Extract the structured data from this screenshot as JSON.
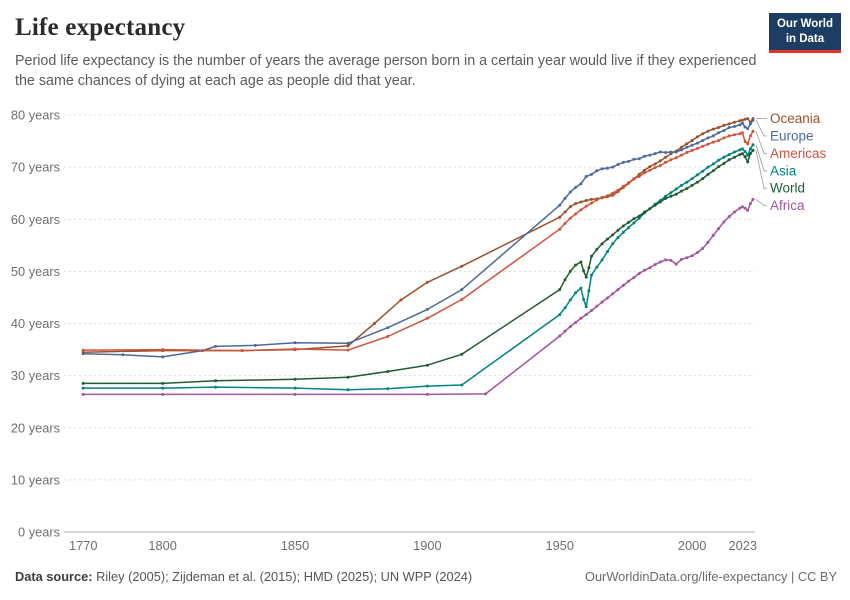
{
  "header": {
    "subtitle": "Period life expectancy is the number of years the average person born in a certain year would live if they experienced the same chances of dying at each age as people did that year.",
    "logo": {
      "line1": "Our World",
      "line2": "in Data",
      "bg": "#1d3d63",
      "accent": "#e5332c"
    }
  },
  "chart_data": {
    "type": "line",
    "title": "Life expectancy",
    "xlabel": "",
    "ylabel": "",
    "x_range": [
      1765,
      2023
    ],
    "y_range": [
      0,
      80
    ],
    "x_ticks": [
      1770,
      1800,
      1850,
      1900,
      1950,
      2000,
      2023
    ],
    "y_ticks": [
      0,
      10,
      20,
      30,
      40,
      50,
      60,
      70,
      80
    ],
    "y_tick_suffix": " years",
    "grid": "horizontal-dashed",
    "legend_position": "right",
    "series": [
      {
        "name": "Oceania",
        "color": "#9a5129",
        "points": [
          [
            1770,
            34.5
          ],
          [
            1800,
            34.8
          ],
          [
            1830,
            34.8
          ],
          [
            1850,
            35.0
          ],
          [
            1870,
            35.7
          ],
          [
            1880,
            40.0
          ],
          [
            1890,
            44.5
          ],
          [
            1900,
            47.9
          ],
          [
            1913,
            51.0
          ],
          [
            1950,
            60.4
          ],
          [
            1952,
            61.4
          ],
          [
            1954,
            62.4
          ],
          [
            1956,
            63.0
          ],
          [
            1958,
            63.3
          ],
          [
            1960,
            63.6
          ],
          [
            1962,
            63.8
          ],
          [
            1964,
            63.9
          ],
          [
            1966,
            64.1
          ],
          [
            1968,
            64.3
          ],
          [
            1970,
            64.6
          ],
          [
            1972,
            65.3
          ],
          [
            1974,
            66.1
          ],
          [
            1976,
            66.9
          ],
          [
            1978,
            67.7
          ],
          [
            1980,
            68.6
          ],
          [
            1982,
            69.4
          ],
          [
            1984,
            70.1
          ],
          [
            1986,
            70.6
          ],
          [
            1988,
            71.2
          ],
          [
            1990,
            71.9
          ],
          [
            1992,
            72.6
          ],
          [
            1994,
            73.1
          ],
          [
            1996,
            73.8
          ],
          [
            1998,
            74.5
          ],
          [
            2000,
            75.1
          ],
          [
            2002,
            75.8
          ],
          [
            2004,
            76.4
          ],
          [
            2006,
            76.9
          ],
          [
            2008,
            77.3
          ],
          [
            2010,
            77.6
          ],
          [
            2012,
            78.0
          ],
          [
            2014,
            78.3
          ],
          [
            2016,
            78.6
          ],
          [
            2018,
            78.9
          ],
          [
            2019,
            79.0
          ],
          [
            2020,
            79.2
          ],
          [
            2021,
            79.3
          ],
          [
            2022,
            78.6
          ],
          [
            2023,
            79.3
          ]
        ]
      },
      {
        "name": "Europe",
        "color": "#4c6a9c",
        "points": [
          [
            1770,
            34.2
          ],
          [
            1785,
            34.0
          ],
          [
            1800,
            33.6
          ],
          [
            1815,
            34.8
          ],
          [
            1820,
            35.6
          ],
          [
            1835,
            35.8
          ],
          [
            1850,
            36.3
          ],
          [
            1870,
            36.2
          ],
          [
            1885,
            39.2
          ],
          [
            1900,
            42.7
          ],
          [
            1913,
            46.5
          ],
          [
            1950,
            62.7
          ],
          [
            1952,
            64.0
          ],
          [
            1954,
            65.2
          ],
          [
            1956,
            66.1
          ],
          [
            1958,
            66.8
          ],
          [
            1960,
            68.2
          ],
          [
            1962,
            68.6
          ],
          [
            1964,
            69.3
          ],
          [
            1966,
            69.7
          ],
          [
            1968,
            69.8
          ],
          [
            1970,
            70.0
          ],
          [
            1972,
            70.5
          ],
          [
            1974,
            70.9
          ],
          [
            1976,
            71.1
          ],
          [
            1978,
            71.5
          ],
          [
            1980,
            71.6
          ],
          [
            1982,
            72.1
          ],
          [
            1984,
            72.3
          ],
          [
            1986,
            72.6
          ],
          [
            1988,
            72.9
          ],
          [
            1990,
            72.8
          ],
          [
            1992,
            72.9
          ],
          [
            1994,
            72.9
          ],
          [
            1996,
            73.3
          ],
          [
            1998,
            73.8
          ],
          [
            2000,
            74.2
          ],
          [
            2002,
            74.6
          ],
          [
            2004,
            75.1
          ],
          [
            2006,
            75.6
          ],
          [
            2008,
            76.0
          ],
          [
            2010,
            76.6
          ],
          [
            2012,
            77.0
          ],
          [
            2014,
            77.6
          ],
          [
            2016,
            77.8
          ],
          [
            2018,
            78.1
          ],
          [
            2019,
            78.4
          ],
          [
            2020,
            77.7
          ],
          [
            2021,
            77.4
          ],
          [
            2022,
            78.3
          ],
          [
            2023,
            79.0
          ]
        ]
      },
      {
        "name": "Americas",
        "color": "#d0543c",
        "points": [
          [
            1770,
            34.9
          ],
          [
            1800,
            35.0
          ],
          [
            1830,
            34.8
          ],
          [
            1850,
            35.1
          ],
          [
            1870,
            34.9
          ],
          [
            1885,
            37.5
          ],
          [
            1900,
            41.0
          ],
          [
            1913,
            44.6
          ],
          [
            1950,
            58.1
          ],
          [
            1952,
            59.2
          ],
          [
            1954,
            60.2
          ],
          [
            1956,
            61.0
          ],
          [
            1958,
            61.8
          ],
          [
            1960,
            62.5
          ],
          [
            1962,
            63.1
          ],
          [
            1964,
            63.7
          ],
          [
            1966,
            64.2
          ],
          [
            1968,
            64.5
          ],
          [
            1970,
            65.0
          ],
          [
            1972,
            65.6
          ],
          [
            1974,
            66.3
          ],
          [
            1976,
            67.0
          ],
          [
            1978,
            67.8
          ],
          [
            1980,
            68.2
          ],
          [
            1982,
            68.9
          ],
          [
            1984,
            69.4
          ],
          [
            1986,
            69.9
          ],
          [
            1988,
            70.3
          ],
          [
            1990,
            70.9
          ],
          [
            1992,
            71.4
          ],
          [
            1994,
            71.8
          ],
          [
            1996,
            72.3
          ],
          [
            1998,
            72.8
          ],
          [
            2000,
            73.2
          ],
          [
            2002,
            73.6
          ],
          [
            2004,
            74.0
          ],
          [
            2006,
            74.4
          ],
          [
            2008,
            74.8
          ],
          [
            2010,
            75.1
          ],
          [
            2012,
            75.6
          ],
          [
            2014,
            76.0
          ],
          [
            2016,
            76.2
          ],
          [
            2018,
            76.4
          ],
          [
            2019,
            76.6
          ],
          [
            2020,
            74.9
          ],
          [
            2021,
            74.5
          ],
          [
            2022,
            76.0
          ],
          [
            2023,
            76.9
          ]
        ]
      },
      {
        "name": "Asia",
        "color": "#00847e",
        "points": [
          [
            1770,
            27.6
          ],
          [
            1800,
            27.6
          ],
          [
            1820,
            27.8
          ],
          [
            1850,
            27.6
          ],
          [
            1870,
            27.3
          ],
          [
            1885,
            27.5
          ],
          [
            1900,
            28.0
          ],
          [
            1913,
            28.2
          ],
          [
            1950,
            41.7
          ],
          [
            1952,
            43.0
          ],
          [
            1954,
            44.5
          ],
          [
            1956,
            45.9
          ],
          [
            1958,
            46.8
          ],
          [
            1959,
            44.6
          ],
          [
            1960,
            43.2
          ],
          [
            1961,
            46.3
          ],
          [
            1962,
            49.3
          ],
          [
            1964,
            50.8
          ],
          [
            1966,
            52.2
          ],
          [
            1968,
            53.8
          ],
          [
            1970,
            55.3
          ],
          [
            1972,
            56.5
          ],
          [
            1974,
            57.5
          ],
          [
            1976,
            58.4
          ],
          [
            1978,
            59.3
          ],
          [
            1980,
            60.2
          ],
          [
            1982,
            61.2
          ],
          [
            1984,
            62.0
          ],
          [
            1986,
            62.9
          ],
          [
            1988,
            63.6
          ],
          [
            1990,
            64.4
          ],
          [
            1992,
            65.1
          ],
          [
            1994,
            65.8
          ],
          [
            1996,
            66.5
          ],
          [
            1998,
            67.1
          ],
          [
            2000,
            67.8
          ],
          [
            2002,
            68.5
          ],
          [
            2004,
            69.2
          ],
          [
            2006,
            70.0
          ],
          [
            2008,
            70.6
          ],
          [
            2010,
            71.3
          ],
          [
            2012,
            71.9
          ],
          [
            2014,
            72.4
          ],
          [
            2016,
            72.9
          ],
          [
            2018,
            73.3
          ],
          [
            2019,
            73.5
          ],
          [
            2020,
            73.0
          ],
          [
            2021,
            72.3
          ],
          [
            2022,
            73.5
          ],
          [
            2023,
            74.3
          ]
        ]
      },
      {
        "name": "World",
        "color": "#215c31",
        "points": [
          [
            1770,
            28.5
          ],
          [
            1800,
            28.5
          ],
          [
            1820,
            29.0
          ],
          [
            1850,
            29.3
          ],
          [
            1870,
            29.7
          ],
          [
            1885,
            30.8
          ],
          [
            1900,
            32.0
          ],
          [
            1913,
            34.1
          ],
          [
            1950,
            46.5
          ],
          [
            1952,
            48.4
          ],
          [
            1954,
            50.0
          ],
          [
            1956,
            51.2
          ],
          [
            1958,
            51.8
          ],
          [
            1959,
            50.1
          ],
          [
            1960,
            48.9
          ],
          [
            1961,
            50.7
          ],
          [
            1962,
            52.9
          ],
          [
            1964,
            54.2
          ],
          [
            1966,
            55.3
          ],
          [
            1968,
            56.2
          ],
          [
            1970,
            57.0
          ],
          [
            1972,
            57.9
          ],
          [
            1974,
            58.7
          ],
          [
            1976,
            59.4
          ],
          [
            1978,
            60.1
          ],
          [
            1980,
            60.6
          ],
          [
            1982,
            61.4
          ],
          [
            1984,
            62.0
          ],
          [
            1986,
            62.7
          ],
          [
            1988,
            63.3
          ],
          [
            1990,
            64.0
          ],
          [
            1992,
            64.4
          ],
          [
            1994,
            64.8
          ],
          [
            1996,
            65.4
          ],
          [
            1998,
            65.9
          ],
          [
            2000,
            66.5
          ],
          [
            2002,
            67.1
          ],
          [
            2004,
            67.8
          ],
          [
            2006,
            68.6
          ],
          [
            2008,
            69.3
          ],
          [
            2010,
            70.1
          ],
          [
            2012,
            70.7
          ],
          [
            2014,
            71.4
          ],
          [
            2016,
            71.9
          ],
          [
            2018,
            72.4
          ],
          [
            2019,
            72.6
          ],
          [
            2020,
            72.0
          ],
          [
            2021,
            71.0
          ],
          [
            2022,
            72.6
          ],
          [
            2023,
            73.2
          ]
        ]
      },
      {
        "name": "Africa",
        "color": "#a2559c",
        "points": [
          [
            1770,
            26.4
          ],
          [
            1800,
            26.4
          ],
          [
            1850,
            26.4
          ],
          [
            1900,
            26.4
          ],
          [
            1922,
            26.5
          ],
          [
            1950,
            37.6
          ],
          [
            1952,
            38.5
          ],
          [
            1954,
            39.4
          ],
          [
            1956,
            40.2
          ],
          [
            1958,
            41.0
          ],
          [
            1960,
            41.7
          ],
          [
            1962,
            42.5
          ],
          [
            1964,
            43.3
          ],
          [
            1966,
            44.1
          ],
          [
            1968,
            44.9
          ],
          [
            1970,
            45.7
          ],
          [
            1972,
            46.5
          ],
          [
            1974,
            47.3
          ],
          [
            1976,
            48.1
          ],
          [
            1978,
            48.8
          ],
          [
            1980,
            49.6
          ],
          [
            1982,
            50.2
          ],
          [
            1984,
            50.7
          ],
          [
            1986,
            51.3
          ],
          [
            1988,
            51.8
          ],
          [
            1990,
            52.2
          ],
          [
            1992,
            52.1
          ],
          [
            1994,
            51.4
          ],
          [
            1996,
            52.3
          ],
          [
            1998,
            52.6
          ],
          [
            2000,
            53.0
          ],
          [
            2002,
            53.6
          ],
          [
            2004,
            54.4
          ],
          [
            2006,
            55.6
          ],
          [
            2008,
            56.9
          ],
          [
            2010,
            58.2
          ],
          [
            2012,
            59.5
          ],
          [
            2014,
            60.5
          ],
          [
            2016,
            61.4
          ],
          [
            2018,
            62.1
          ],
          [
            2019,
            62.4
          ],
          [
            2020,
            62.1
          ],
          [
            2021,
            61.7
          ],
          [
            2022,
            63.0
          ],
          [
            2023,
            63.8
          ]
        ]
      }
    ]
  },
  "footer": {
    "datasource_label": "Data source:",
    "datasource_text": " Riley (2005); Zijdeman et al. (2015); HMD (2025); UN WPP (2024)",
    "credit": "OurWorldinData.org/life-expectancy | CC BY"
  }
}
